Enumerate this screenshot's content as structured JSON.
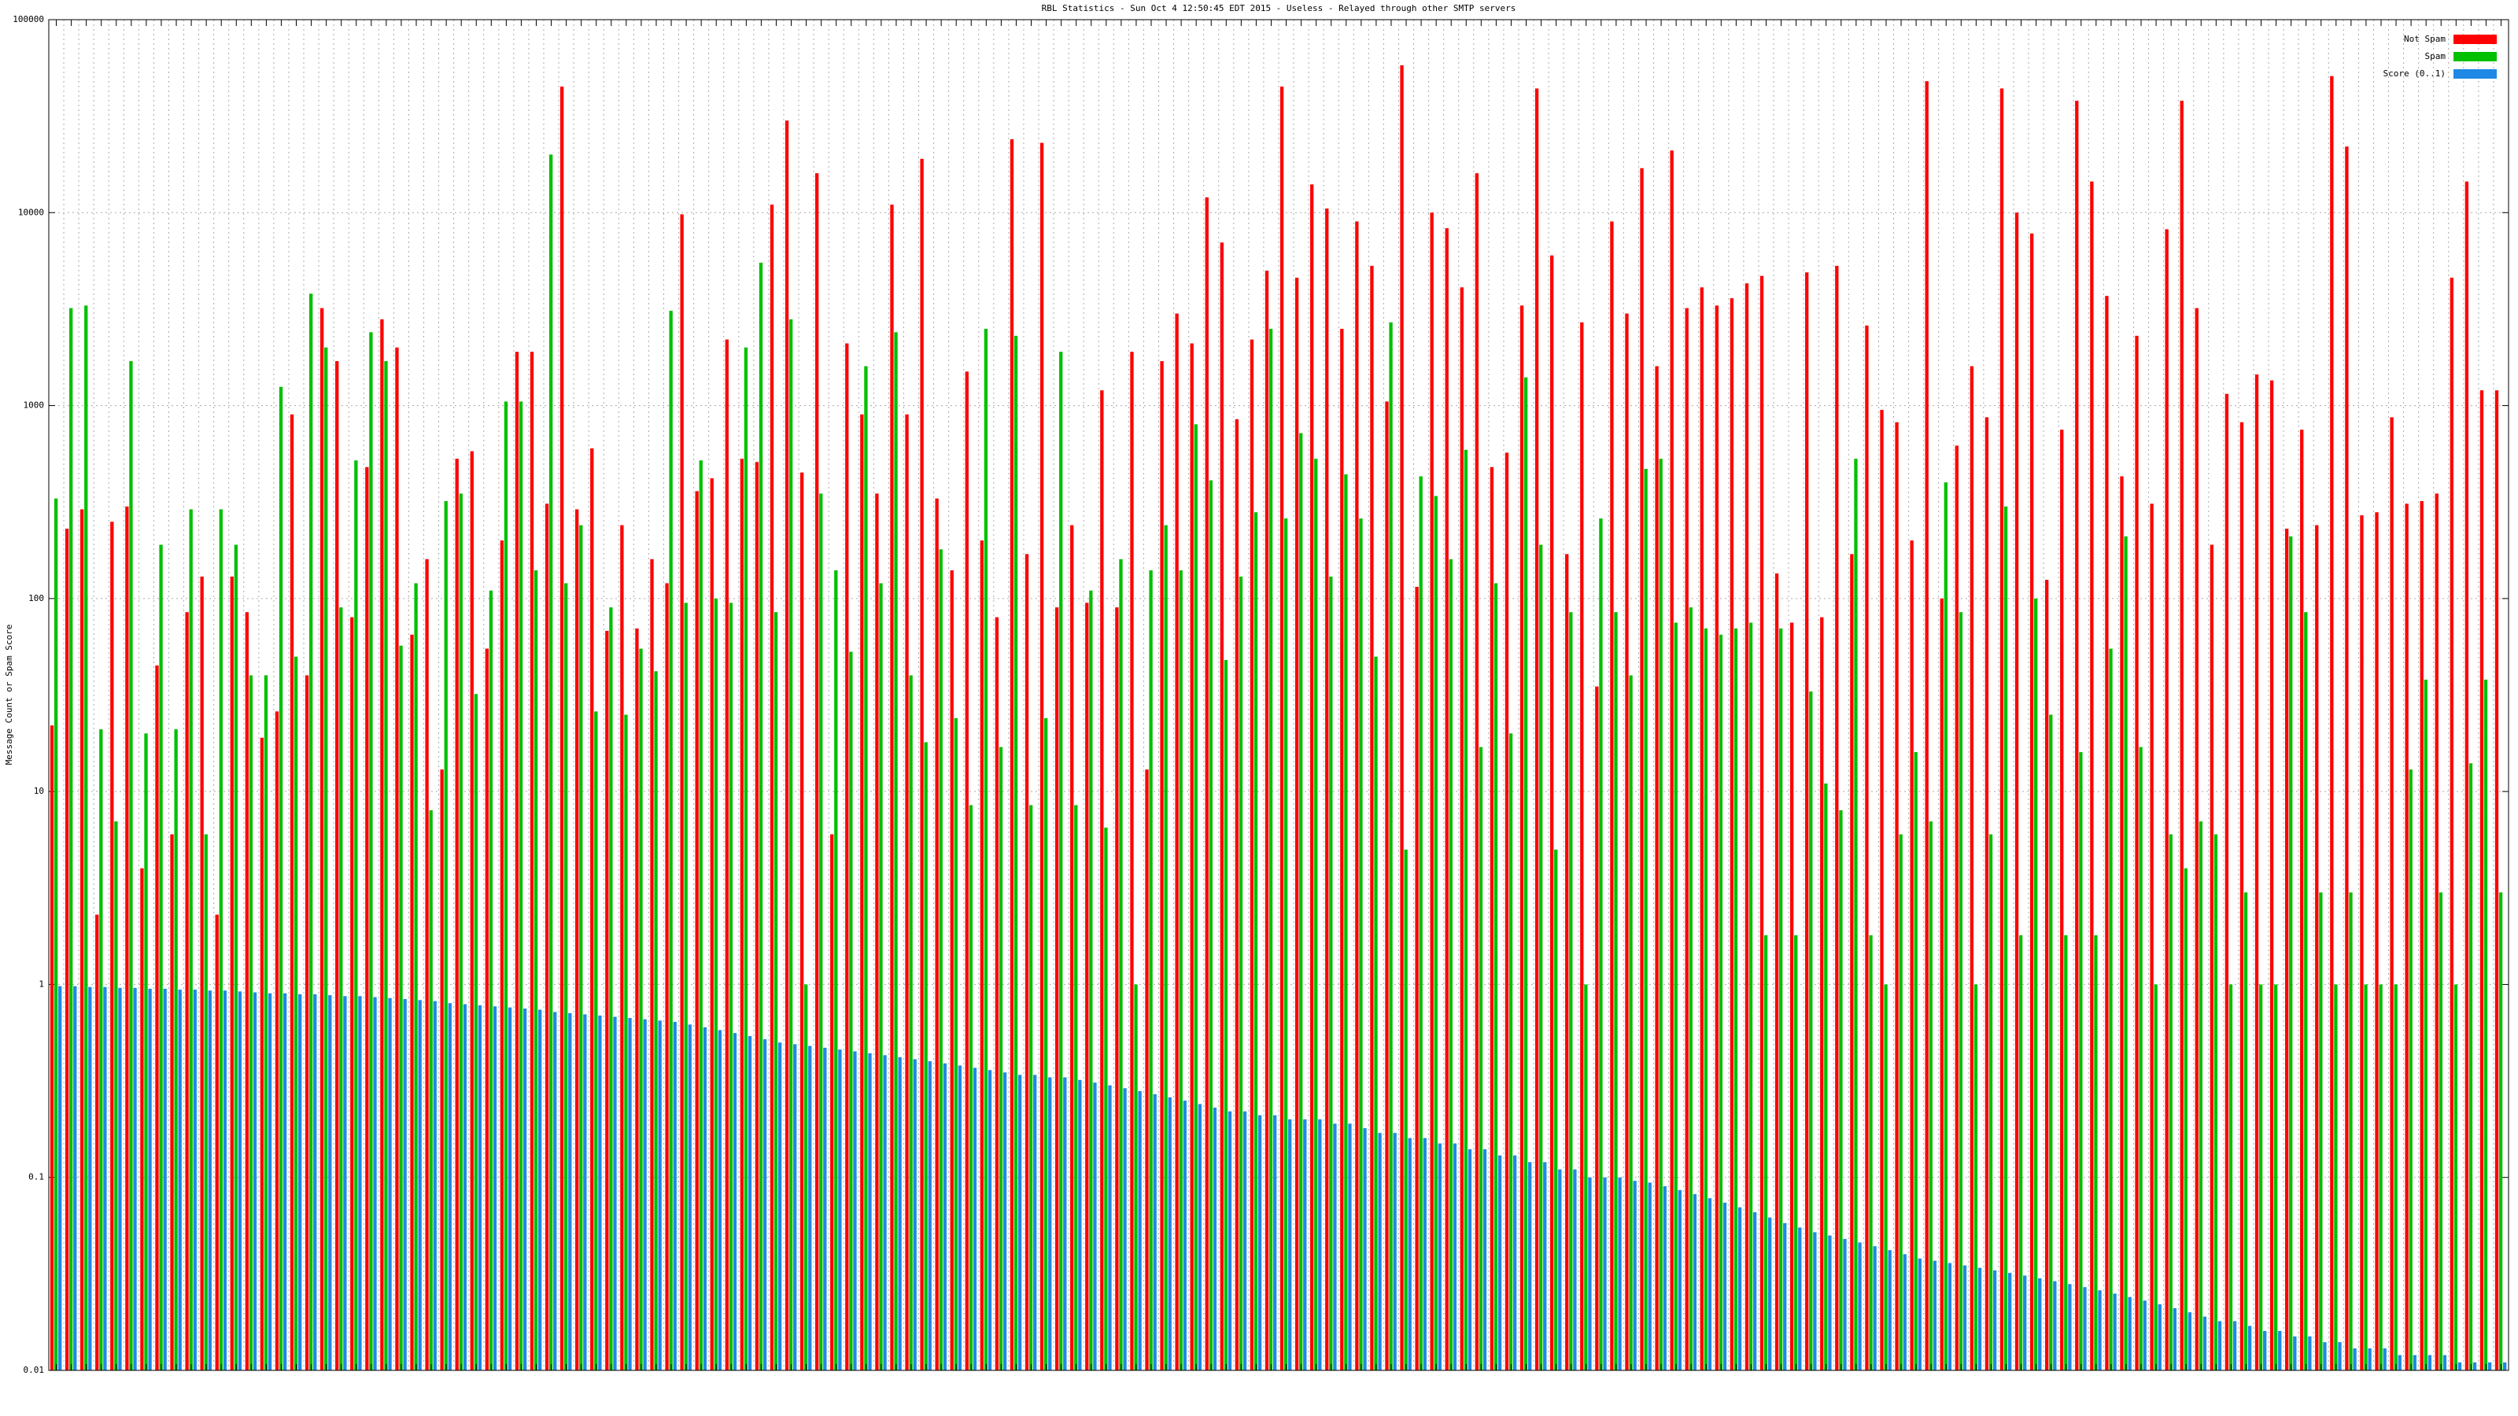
{
  "chart_data": {
    "type": "bar",
    "title": "RBL Statistics - Sun Oct  4 12:50:45 EDT 2015 - Useless - Relayed through other SMTP servers",
    "y_label": "Message Count or Spam Score",
    "log_scale": true,
    "grid": true,
    "legend": "top-right",
    "ylim": [
      0.01,
      100000
    ],
    "yticks": [
      0.01,
      0.1,
      1,
      10,
      100,
      1000,
      10000,
      100000
    ],
    "categories": [
      null,
      null,
      null,
      null,
      null,
      null,
      null,
      null,
      null,
      null,
      null,
      null,
      null,
      null,
      null,
      null,
      null,
      null,
      null,
      null,
      null,
      null,
      null,
      null,
      null,
      null,
      null,
      null,
      null,
      null,
      null,
      null,
      null,
      null,
      null,
      null,
      null,
      null,
      null,
      null,
      null,
      null,
      null,
      null,
      null,
      null,
      null,
      null,
      null,
      null,
      null,
      null,
      null,
      null,
      null,
      null,
      null,
      null,
      null,
      null,
      null,
      null,
      null,
      null,
      null,
      null,
      null,
      null,
      null,
      null,
      null,
      null,
      null,
      null,
      null,
      null,
      null,
      null,
      null,
      null,
      null,
      null,
      null,
      null,
      null,
      null,
      null,
      null,
      null,
      null,
      null,
      null,
      null,
      null,
      null,
      null,
      null,
      null,
      null,
      null,
      null,
      null,
      null,
      null,
      null,
      null,
      null,
      null,
      null,
      null,
      null,
      null,
      null,
      null,
      null,
      null,
      null,
      null,
      null,
      null,
      null,
      null,
      null,
      null,
      null,
      null,
      null,
      null,
      null,
      null,
      null,
      null,
      null,
      null,
      null,
      null,
      null,
      null,
      null,
      null,
      null,
      null,
      null,
      null,
      null,
      null,
      null,
      null,
      null,
      null,
      null,
      null,
      null,
      null,
      null,
      null,
      null,
      null,
      null,
      null,
      null,
      null,
      null,
      null
    ],
    "series": [
      {
        "name": "Not Spam",
        "color": "#ff0000",
        "values": [
          22,
          230,
          290,
          2.3,
          250,
          300,
          4,
          45,
          6,
          85,
          130,
          2.3,
          130,
          85,
          19,
          26,
          900,
          40,
          3200,
          1700,
          80,
          480,
          2800,
          2000,
          65,
          160,
          13,
          530,
          580,
          55,
          200,
          1900,
          1900,
          310,
          45000,
          290,
          600,
          68,
          240,
          70,
          160,
          120,
          9800,
          360,
          420,
          2200,
          530,
          510,
          11000,
          30000,
          450,
          16000,
          6,
          2100,
          900,
          350,
          11000,
          900,
          19000,
          330,
          140,
          1500,
          200,
          80,
          24000,
          170,
          23000,
          90,
          240,
          95,
          1200,
          90,
          1900,
          13,
          1700,
          3000,
          2100,
          12000,
          7000,
          850,
          2200,
          5000,
          45000,
          4600,
          14000,
          10500,
          2500,
          9000,
          5300,
          1050,
          58000,
          115,
          10000,
          8300,
          4100,
          16000,
          480,
          570,
          3300,
          44000,
          6000,
          170,
          2700,
          35,
          9000,
          3000,
          17000,
          1600,
          21000,
          3200,
          4100,
          3300,
          3600,
          4300,
          4700,
          135,
          75,
          4900,
          80,
          5300,
          170,
          2600,
          950,
          820,
          200,
          48000,
          100,
          620,
          1600,
          870,
          44000,
          10000,
          7800,
          125,
          750,
          38000,
          14500,
          3700,
          430,
          2300,
          310,
          8200,
          38000,
          3200,
          190,
          1150,
          820,
          1450,
          1350,
          230,
          750,
          240,
          51000,
          22000,
          270,
          280,
          870,
          310,
          320,
          350,
          4600,
          14500,
          1200,
          1200
        ]
      },
      {
        "name": "Spam",
        "color": "#00c000",
        "values": [
          330,
          3200,
          3300,
          21,
          7,
          1700,
          20,
          190,
          21,
          290,
          6,
          290,
          190,
          40,
          40,
          1250,
          50,
          3800,
          2000,
          90,
          520,
          2400,
          1700,
          57,
          120,
          8,
          320,
          350,
          32,
          110,
          1050,
          1050,
          140,
          20000,
          120,
          240,
          26,
          90,
          25,
          55,
          42,
          3100,
          95,
          520,
          100,
          95,
          2000,
          5500,
          85,
          2800,
          1,
          350,
          140,
          53,
          1600,
          120,
          2400,
          40,
          18,
          180,
          24,
          8.5,
          2500,
          17,
          2300,
          8.5,
          24,
          1900,
          8.5,
          110,
          6.5,
          160,
          1,
          140,
          240,
          140,
          800,
          410,
          48,
          130,
          280,
          2500,
          260,
          720,
          530,
          130,
          440,
          260,
          50,
          2700,
          5,
          430,
          340,
          160,
          590,
          17,
          120,
          20,
          1400,
          190,
          5,
          85,
          1,
          260,
          85,
          40,
          470,
          530,
          75,
          90,
          70,
          65,
          70,
          75,
          1.8,
          70,
          1.8,
          33,
          11,
          8,
          530,
          1.8,
          1,
          6,
          16,
          7,
          400,
          85,
          1,
          6,
          300,
          1.8,
          100,
          25,
          1.8,
          16,
          1.8,
          55,
          210,
          17,
          1,
          6,
          4,
          7,
          6,
          1,
          3,
          1,
          1,
          210,
          85,
          3,
          1,
          3,
          1,
          1,
          1,
          13,
          38,
          3,
          1,
          14,
          38,
          3
        ]
      },
      {
        "name": "Score (0..1)",
        "color": "#1e88e5",
        "values": [
          0.98,
          0.98,
          0.97,
          0.97,
          0.96,
          0.96,
          0.95,
          0.95,
          0.94,
          0.94,
          0.93,
          0.93,
          0.92,
          0.91,
          0.9,
          0.9,
          0.89,
          0.89,
          0.88,
          0.87,
          0.87,
          0.86,
          0.85,
          0.84,
          0.83,
          0.82,
          0.8,
          0.79,
          0.78,
          0.77,
          0.76,
          0.75,
          0.74,
          0.72,
          0.71,
          0.7,
          0.69,
          0.68,
          0.67,
          0.66,
          0.65,
          0.64,
          0.62,
          0.6,
          0.58,
          0.56,
          0.54,
          0.52,
          0.5,
          0.49,
          0.48,
          0.47,
          0.46,
          0.45,
          0.44,
          0.43,
          0.42,
          0.41,
          0.4,
          0.39,
          0.38,
          0.37,
          0.36,
          0.35,
          0.34,
          0.34,
          0.33,
          0.33,
          0.32,
          0.31,
          0.3,
          0.29,
          0.28,
          0.27,
          0.26,
          0.25,
          0.24,
          0.23,
          0.22,
          0.22,
          0.21,
          0.21,
          0.2,
          0.2,
          0.2,
          0.19,
          0.19,
          0.18,
          0.17,
          0.17,
          0.16,
          0.16,
          0.15,
          0.15,
          0.14,
          0.14,
          0.13,
          0.13,
          0.12,
          0.12,
          0.11,
          0.11,
          0.1,
          0.1,
          0.1,
          0.096,
          0.094,
          0.09,
          0.086,
          0.082,
          0.078,
          0.074,
          0.07,
          0.066,
          0.062,
          0.058,
          0.055,
          0.052,
          0.05,
          0.048,
          0.046,
          0.044,
          0.042,
          0.04,
          0.038,
          0.037,
          0.036,
          0.035,
          0.034,
          0.033,
          0.032,
          0.031,
          0.03,
          0.029,
          0.028,
          0.027,
          0.026,
          0.025,
          0.024,
          0.023,
          0.022,
          0.021,
          0.02,
          0.019,
          0.018,
          0.018,
          0.017,
          0.016,
          0.016,
          0.015,
          0.015,
          0.014,
          0.014,
          0.013,
          0.013,
          0.013,
          0.012,
          0.012,
          0.012,
          0.012,
          0.011,
          0.011,
          0.011,
          0.011
        ]
      }
    ]
  }
}
